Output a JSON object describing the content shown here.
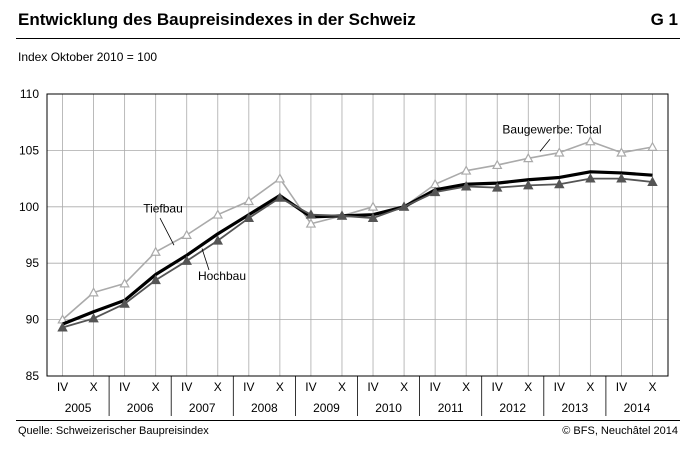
{
  "header": {
    "title": "Entwicklung des Baupreisindexes in der Schweiz",
    "code": "G 1",
    "subtitle": "Index Oktober 2010 = 100"
  },
  "footer": {
    "source": "Quelle: Schweizerischer Baupreisindex",
    "copyright": "© BFS, Neuchâtel 2014"
  },
  "colors": {
    "total": "#000000",
    "hochbau": "#555555",
    "tiefbau": "#aaaaaa",
    "grid": "#aaaaaa"
  },
  "chart_data": {
    "type": "line",
    "grid": true,
    "ylim": [
      85,
      110
    ],
    "yticks": [
      85,
      90,
      95,
      100,
      105,
      110
    ],
    "categories": [
      "IV",
      "X",
      "IV",
      "X",
      "IV",
      "X",
      "IV",
      "X",
      "IV",
      "X",
      "IV",
      "X",
      "IV",
      "X",
      "IV",
      "X",
      "IV",
      "X",
      "IV",
      "X"
    ],
    "years": [
      "2005",
      "2006",
      "2007",
      "2008",
      "2009",
      "2010",
      "2011",
      "2012",
      "2013",
      "2014"
    ],
    "series": [
      {
        "name": "Tiefbau",
        "marker": "triangle-open",
        "values": [
          90.0,
          92.4,
          93.2,
          96.0,
          97.5,
          99.3,
          100.5,
          102.5,
          98.5,
          99.2,
          100.0,
          100.0,
          102.0,
          103.2,
          103.7,
          104.3,
          104.8,
          105.8,
          104.8,
          105.3
        ]
      },
      {
        "name": "Baugewerbe: Total",
        "marker": "none",
        "values": [
          89.6,
          90.7,
          91.7,
          94.0,
          95.7,
          97.6,
          99.3,
          101.0,
          99.1,
          99.2,
          99.3,
          100.0,
          101.5,
          102.0,
          102.1,
          102.4,
          102.6,
          103.1,
          103.0,
          102.8
        ]
      },
      {
        "name": "Hochbau",
        "marker": "triangle-filled",
        "values": [
          89.3,
          90.1,
          91.4,
          93.5,
          95.2,
          97.0,
          99.0,
          100.8,
          99.3,
          99.2,
          99.0,
          100.0,
          101.3,
          101.8,
          101.7,
          101.9,
          102.0,
          102.5,
          102.5,
          102.2
        ]
      }
    ],
    "annotations": [
      "Tiefbau",
      "Hochbau",
      "Baugewerbe: Total"
    ]
  }
}
